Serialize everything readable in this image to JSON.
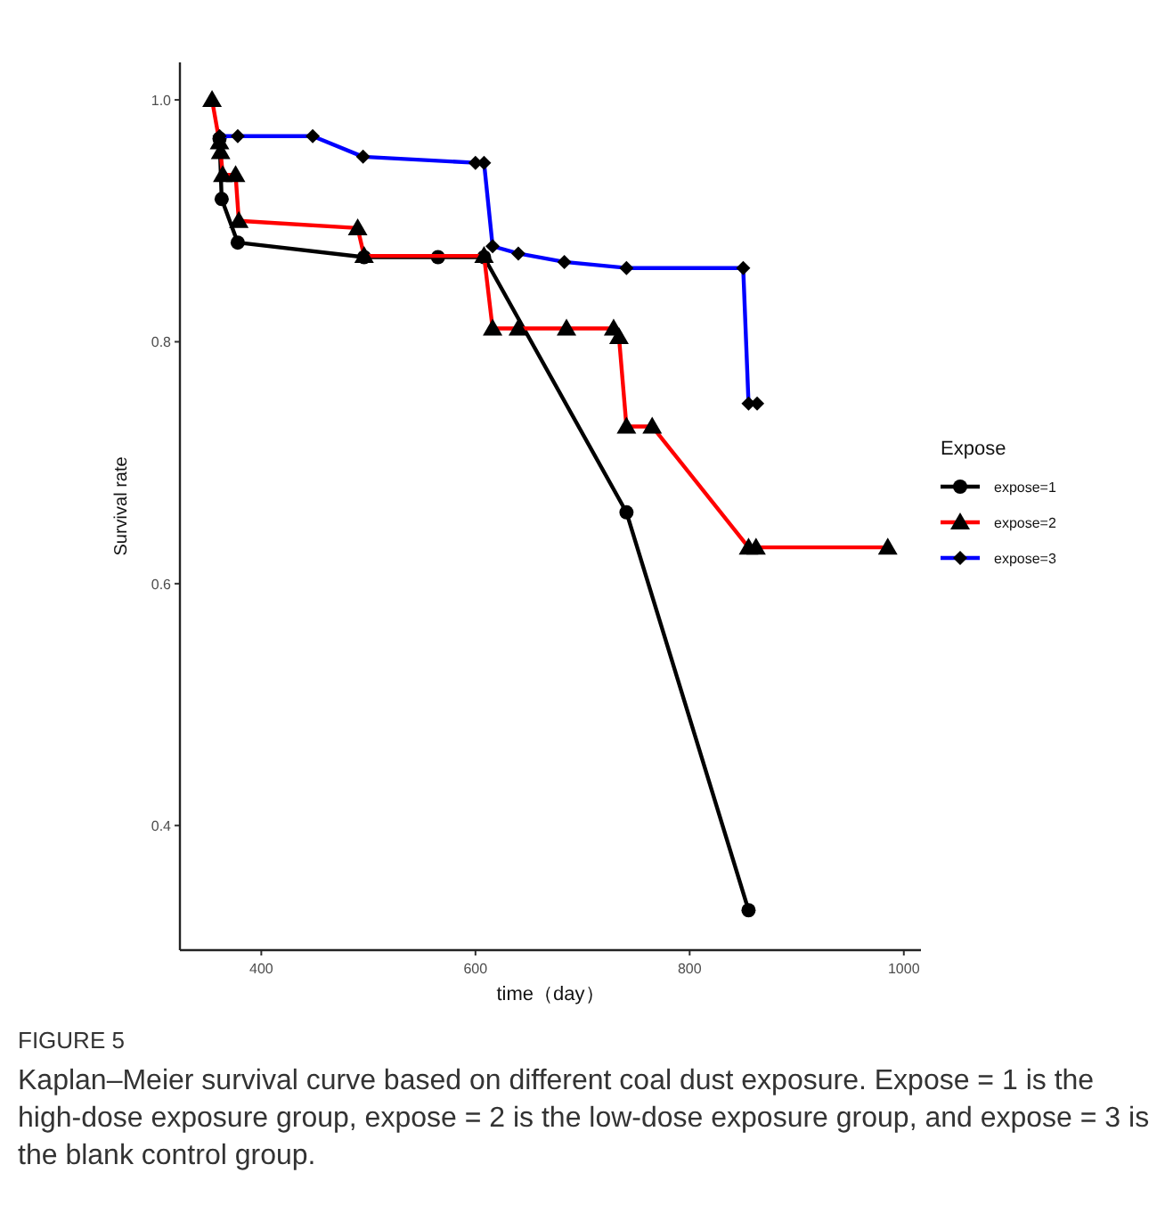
{
  "chart_data": {
    "type": "line",
    "xlabel": "time（day）",
    "ylabel": "Survival rate",
    "legend_title": "Expose",
    "legend": "right",
    "grid": false,
    "xlim": [
      324,
      1016
    ],
    "ylim": [
      0.297,
      1.031
    ],
    "xticks": [
      400,
      600,
      800,
      1000
    ],
    "yticks": [
      {
        "value": 0.4,
        "label": "0.4"
      },
      {
        "value": 0.6,
        "label": "0.6"
      },
      {
        "value": 0.8,
        "label": "0.8"
      },
      {
        "value": 1.0,
        "label": "1.0"
      }
    ],
    "series": [
      {
        "name": "expose=1",
        "color": "#000000",
        "marker": "circle",
        "x": [
          361,
          363,
          378,
          496,
          565,
          608,
          741,
          855
        ],
        "values": [
          0.968,
          0.918,
          0.882,
          0.87,
          0.87,
          0.87,
          0.659,
          0.33
        ]
      },
      {
        "name": "expose=2",
        "color": "#ff0000",
        "marker": "triangle",
        "x": [
          354,
          361,
          362,
          364,
          376,
          379,
          490,
          496,
          608,
          616,
          640,
          685,
          729,
          734,
          741,
          765,
          855,
          862,
          985
        ],
        "values": [
          1.0,
          0.965,
          0.957,
          0.938,
          0.938,
          0.9,
          0.894,
          0.871,
          0.871,
          0.811,
          0.811,
          0.811,
          0.811,
          0.804,
          0.73,
          0.73,
          0.63,
          0.63,
          0.63
        ]
      },
      {
        "name": "expose=3",
        "color": "#0000ff",
        "marker": "diamond",
        "x": [
          361,
          378,
          448,
          495,
          600,
          608,
          616,
          640,
          683,
          741,
          850,
          855,
          863
        ],
        "values": [
          0.97,
          0.97,
          0.97,
          0.953,
          0.948,
          0.948,
          0.879,
          0.873,
          0.866,
          0.861,
          0.861,
          0.749,
          0.749
        ]
      }
    ],
    "annotations": [
      "FIGURE 5",
      "Kaplan–Meier survival curve based on different coal dust exposure. Expose = 1 is the high-dose exposure group, expose = 2 is the low-dose exposure group, and expose = 3 is the blank control group."
    ]
  }
}
